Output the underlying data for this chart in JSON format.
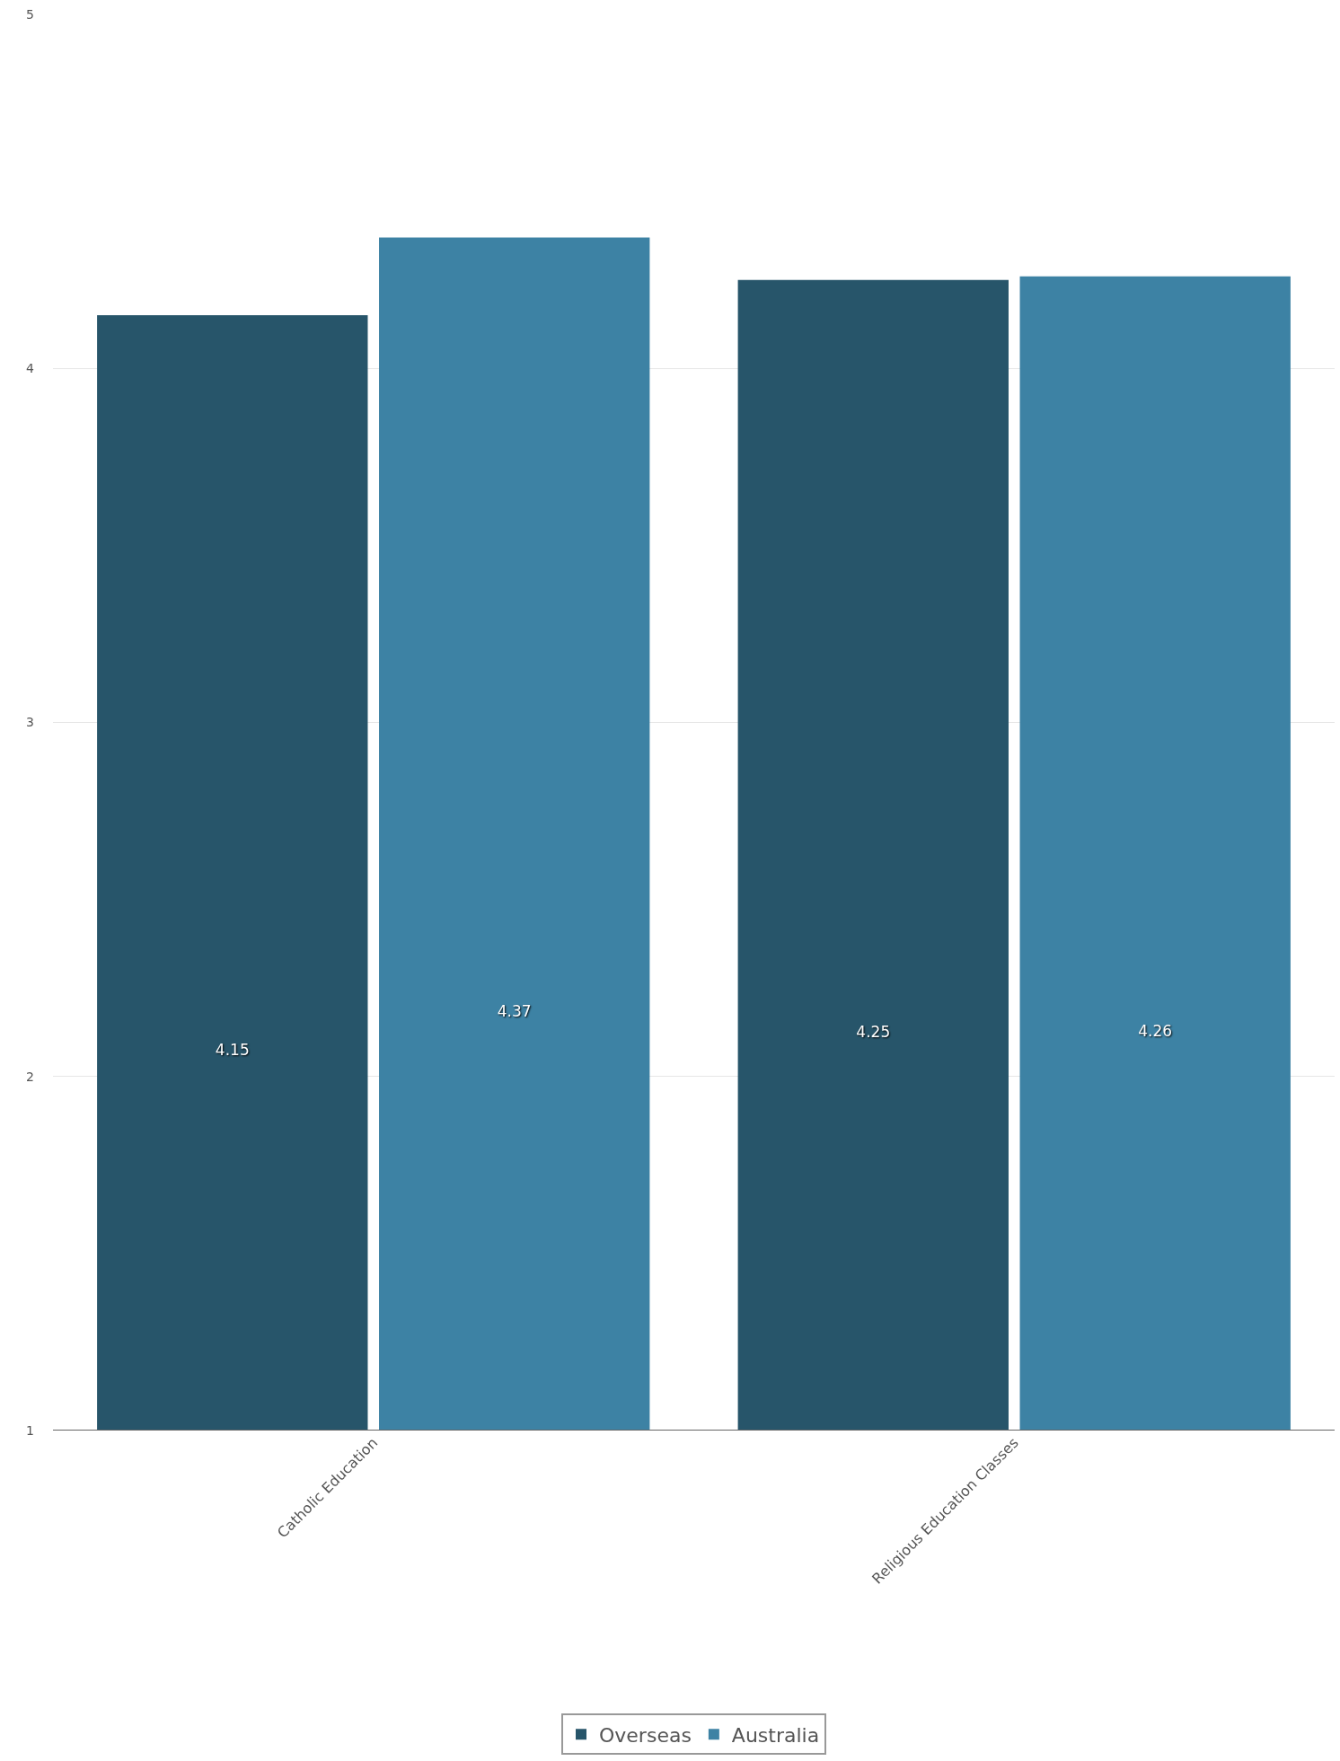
{
  "chart_data": {
    "type": "bar",
    "categories": [
      "Catholic Education",
      "Religious Education Classes"
    ],
    "series": [
      {
        "name": "Overseas",
        "color": "#27556a",
        "values": [
          4.15,
          4.25
        ]
      },
      {
        "name": "Australia",
        "color": "#3d82a4",
        "values": [
          4.37,
          4.26
        ]
      }
    ],
    "ylim": [
      1,
      5
    ],
    "yticks": [
      1,
      2,
      3,
      4,
      5
    ],
    "grid": "y",
    "legend": "bottom",
    "data_labels": true
  }
}
